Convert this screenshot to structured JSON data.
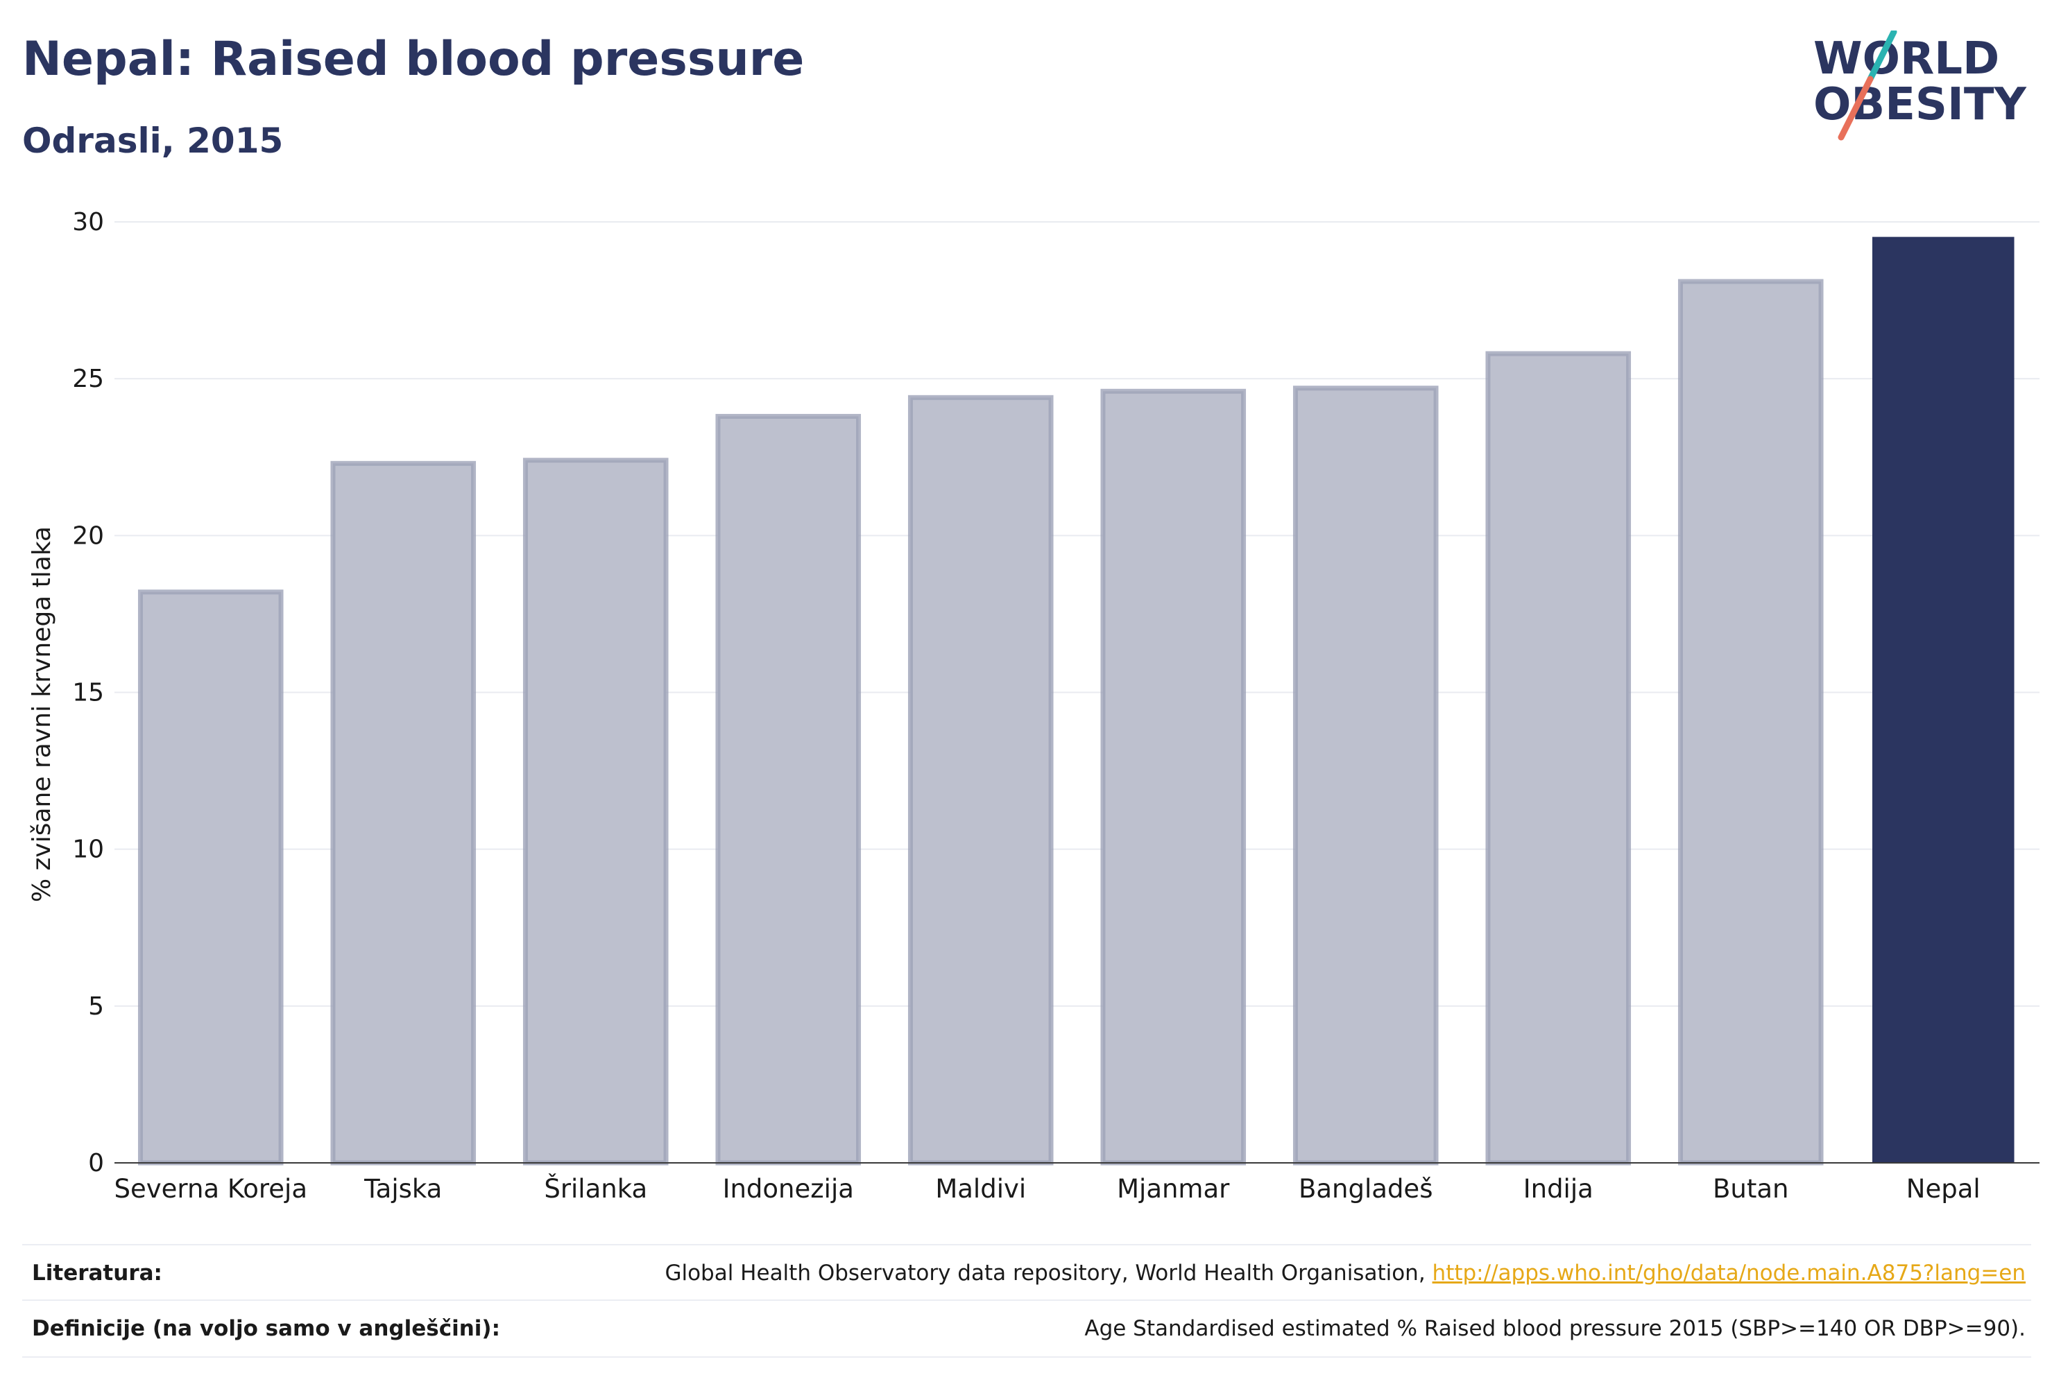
{
  "header": {
    "title": "Nepal: Raised blood pressure",
    "subtitle": "Odrasli, 2015"
  },
  "logo": {
    "line1": "WORLD",
    "line2": "OBESITY",
    "accent_teal": "#2ab3b1",
    "accent_coral": "#e8705a"
  },
  "colors": {
    "text": "#2b3560",
    "bar_muted": "#bdc0ce",
    "bar_muted_stroke": "#9da2b8",
    "bar_highlight": "#2b3560",
    "grid": "#e9ebf0"
  },
  "chart_data": {
    "type": "bar",
    "categories": [
      "Severna Koreja",
      "Tajska",
      "Šrilanka",
      "Indonezija",
      "Maldivi",
      "Mjanmar",
      "Bangladeš",
      "Indija",
      "Butan",
      "Nepal"
    ],
    "values": [
      18.2,
      22.3,
      22.4,
      23.8,
      24.4,
      24.6,
      24.7,
      25.8,
      28.1,
      29.5
    ],
    "highlight": "Nepal",
    "ylabel": "% zvišane ravni krvnega tlaka",
    "xlabel": "",
    "ylim": [
      0,
      30
    ],
    "yticks": [
      0,
      5,
      10,
      15,
      20,
      25,
      30
    ],
    "grid": true
  },
  "footer": {
    "references_label": "Literatura:",
    "references_text": "Global Health Observatory data repository, World Health Organisation,",
    "references_link": "http://apps.who.int/gho/data/node.main.A875?lang=en",
    "definitions_label": "Definicije (na voljo samo v angleščini):",
    "definitions_text": "Age Standardised estimated % Raised blood pressure 2015 (SBP>=140 OR DBP>=90)."
  }
}
